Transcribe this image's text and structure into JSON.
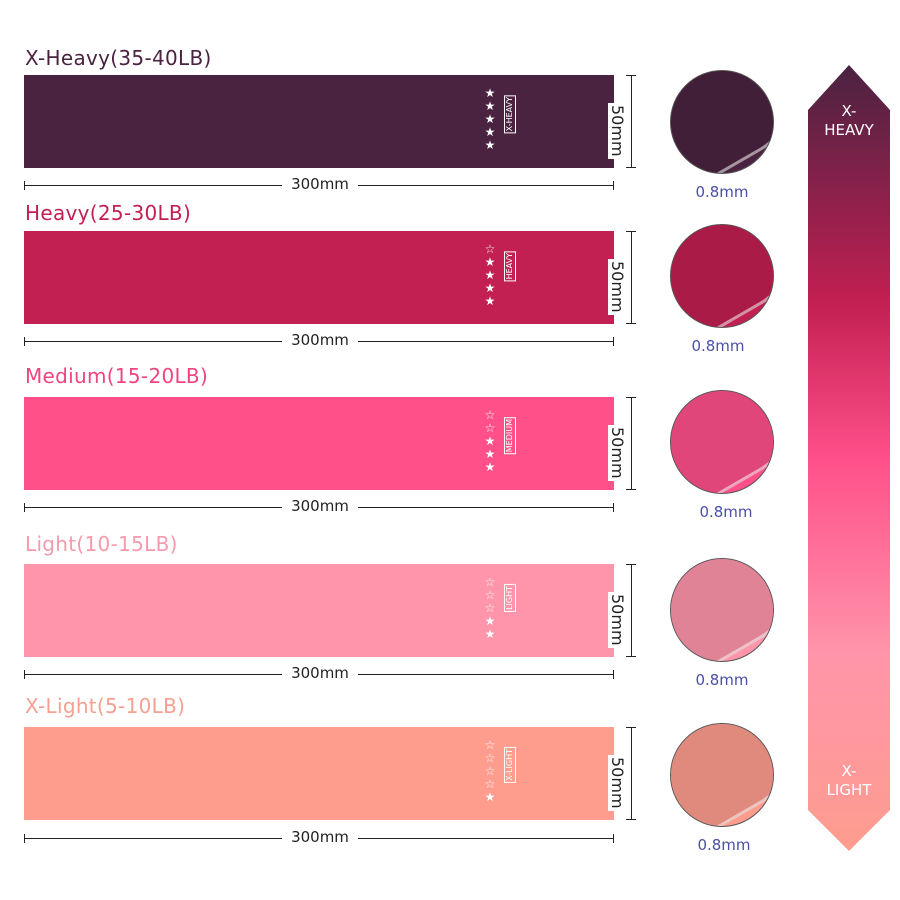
{
  "bands": [
    {
      "title": "X-Heavy(35-40LB)",
      "tag": "X-HEAVY",
      "stars_filled": 5,
      "stars_total": 5,
      "length": "300mm",
      "width": "50mm",
      "thickness": "0.8mm",
      "color": "#4a2341",
      "title_color": "#4a2341"
    },
    {
      "title": "Heavy(25-30LB)",
      "tag": "HEAVY",
      "stars_filled": 4,
      "stars_total": 5,
      "length": "300mm",
      "width": "50mm",
      "thickness": "0.8mm",
      "color": "#c21f52",
      "title_color": "#c21f52"
    },
    {
      "title": "Medium(15-20LB)",
      "tag": "MEDIUM",
      "stars_filled": 3,
      "stars_total": 5,
      "length": "300mm",
      "width": "50mm",
      "thickness": "0.8mm",
      "color": "#ff508a",
      "title_color": "#f0447e"
    },
    {
      "title": "Light(10-15LB)",
      "tag": "LIGHT",
      "stars_filled": 2,
      "stars_total": 5,
      "length": "300mm",
      "width": "50mm",
      "thickness": "0.8mm",
      "color": "#ff95aa",
      "title_color": "#f59aac"
    },
    {
      "title": "X-Light(5-10LB)",
      "tag": "X-LIGHT",
      "stars_filled": 1,
      "stars_total": 5,
      "length": "300mm",
      "width": "50mm",
      "thickness": "0.8mm",
      "color": "#fe9c8e",
      "title_color": "#f5a090"
    }
  ],
  "scale": {
    "top_label_1": "X-",
    "top_label_2": "HEAVY",
    "bottom_label_1": "X-",
    "bottom_label_2": "LIGHT",
    "gradient": [
      "#4a2341",
      "#c21f52",
      "#ff4f8a",
      "#ff95aa",
      "#fe9c8e"
    ]
  }
}
